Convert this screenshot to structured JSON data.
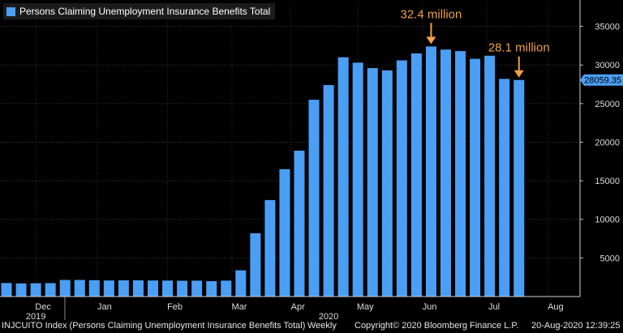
{
  "chart_data": {
    "type": "bar",
    "title": "Persons Claiming Unemployment Insurance Benefits Total",
    "series": [
      {
        "name": "Persons Claiming Unemployment Insurance Benefits Total",
        "color": "#4a9ff5",
        "values": [
          1750,
          1700,
          1720,
          1740,
          2150,
          2150,
          2120,
          2080,
          2100,
          2100,
          2080,
          2070,
          2050,
          2060,
          1990,
          2060,
          3400,
          8200,
          12500,
          16500,
          18900,
          25500,
          27400,
          31000,
          30300,
          29600,
          29300,
          30600,
          31500,
          32400,
          32000,
          31800,
          30800,
          31200,
          28200,
          28059.35
        ]
      }
    ],
    "ylim": [
      0,
      38000
    ],
    "yticks": [
      5000,
      10000,
      15000,
      20000,
      25000,
      30000,
      35000
    ],
    "month_labels": [
      {
        "label": "Dec",
        "bar": 2.5
      },
      {
        "label": "Jan",
        "bar": 6.7
      },
      {
        "label": "Feb",
        "bar": 11.5
      },
      {
        "label": "Mar",
        "bar": 15.9
      },
      {
        "label": "Apr",
        "bar": 19.9
      },
      {
        "label": "May",
        "bar": 24.5
      },
      {
        "label": "Jun",
        "bar": 28.9
      },
      {
        "label": "Jul",
        "bar": 33.3
      },
      {
        "label": "Aug",
        "bar": 37.5
      }
    ],
    "year_labels": [
      {
        "label": "2019",
        "bar": 2.0
      },
      {
        "label": "2020",
        "bar": 22.0
      }
    ],
    "last_value_label": "28059.35",
    "annotations": [
      {
        "text": "32.4 million",
        "bar": 29,
        "color": "#f0a045"
      },
      {
        "text": "28.1 million",
        "bar": 35,
        "color": "#f0a045"
      }
    ],
    "grid": true
  },
  "footer": {
    "index": "INJCUITO Index (Persons Claiming Unemployment Insurance Benefits Total)",
    "frequency": "Weekly",
    "copyright": "Copyright© 2020 Bloomberg Finance L.P.",
    "timestamp": "20-Aug-2020 12:39:25"
  }
}
